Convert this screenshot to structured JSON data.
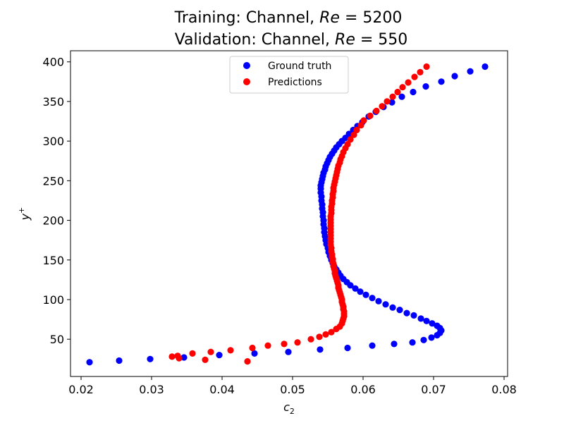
{
  "chart_data": {
    "type": "scatter",
    "title_line1": "Training: Channel, ",
    "title_line1_math": "Re",
    "title_line1_value": " = 5200",
    "title_line2": "Validation: Channel, ",
    "title_line2_math": "Re",
    "title_line2_value": " = 550",
    "xlabel": "c",
    "xlabel_sub": "2",
    "ylabel": "y",
    "ylabel_sup": "+",
    "xlim": [
      0.0185,
      0.0805
    ],
    "ylim": [
      3,
      414
    ],
    "xticks": [
      0.02,
      0.03,
      0.04,
      0.05,
      0.06,
      0.07,
      0.08
    ],
    "xtick_labels": [
      "0.02",
      "0.03",
      "0.04",
      "0.05",
      "0.06",
      "0.07",
      "0.08"
    ],
    "yticks": [
      50,
      100,
      150,
      200,
      250,
      300,
      350,
      400
    ],
    "ytick_labels": [
      "50",
      "100",
      "150",
      "200",
      "250",
      "300",
      "350",
      "400"
    ],
    "legend_position": "upper-center",
    "grid": false,
    "series": [
      {
        "name": "Ground truth",
        "color": "#0000ff",
        "points": [
          [
            0.0212,
            21
          ],
          [
            0.0254,
            23
          ],
          [
            0.0298,
            25
          ],
          [
            0.0346,
            27
          ],
          [
            0.0396,
            30
          ],
          [
            0.0446,
            32
          ],
          [
            0.0494,
            34
          ],
          [
            0.0539,
            37
          ],
          [
            0.0578,
            39
          ],
          [
            0.0613,
            42
          ],
          [
            0.0644,
            44
          ],
          [
            0.067,
            46
          ],
          [
            0.0686,
            49
          ],
          [
            0.0697,
            52
          ],
          [
            0.0705,
            55
          ],
          [
            0.0709,
            58
          ],
          [
            0.0711,
            61
          ],
          [
            0.0709,
            64
          ],
          [
            0.0705,
            67
          ],
          [
            0.0698,
            70
          ],
          [
            0.069,
            73
          ],
          [
            0.0682,
            76
          ],
          [
            0.0672,
            80
          ],
          [
            0.0662,
            83
          ],
          [
            0.0652,
            87
          ],
          [
            0.0642,
            90
          ],
          [
            0.0632,
            94
          ],
          [
            0.0622,
            98
          ],
          [
            0.0613,
            102
          ],
          [
            0.0604,
            106
          ],
          [
            0.0596,
            110
          ],
          [
            0.0589,
            114
          ],
          [
            0.0582,
            118
          ],
          [
            0.0577,
            122
          ],
          [
            0.0572,
            126
          ],
          [
            0.0568,
            130
          ],
          [
            0.0565,
            134
          ],
          [
            0.0562,
            138
          ],
          [
            0.0559,
            142
          ],
          [
            0.0557,
            146
          ],
          [
            0.0555,
            150
          ],
          [
            0.0553,
            155
          ],
          [
            0.0551,
            160
          ],
          [
            0.055,
            165
          ],
          [
            0.0548,
            170
          ],
          [
            0.0547,
            175
          ],
          [
            0.0546,
            180
          ],
          [
            0.0545,
            185
          ],
          [
            0.0545,
            190
          ],
          [
            0.0544,
            195
          ],
          [
            0.0544,
            200
          ],
          [
            0.0543,
            205
          ],
          [
            0.0543,
            210
          ],
          [
            0.0542,
            215
          ],
          [
            0.0542,
            220
          ],
          [
            0.0541,
            225
          ],
          [
            0.0541,
            230
          ],
          [
            0.054,
            235
          ],
          [
            0.054,
            240
          ],
          [
            0.054,
            244
          ],
          [
            0.0541,
            248
          ],
          [
            0.0542,
            252
          ],
          [
            0.0543,
            256
          ],
          [
            0.0544,
            260
          ],
          [
            0.0546,
            264
          ],
          [
            0.0547,
            268
          ],
          [
            0.0549,
            272
          ],
          [
            0.0551,
            276
          ],
          [
            0.0553,
            280
          ],
          [
            0.0556,
            284
          ],
          [
            0.0559,
            288
          ],
          [
            0.0562,
            292
          ],
          [
            0.0566,
            296
          ],
          [
            0.057,
            300
          ],
          [
            0.0575,
            304
          ],
          [
            0.058,
            309
          ],
          [
            0.0586,
            314
          ],
          [
            0.0592,
            319
          ],
          [
            0.0599,
            324
          ],
          [
            0.0608,
            331
          ],
          [
            0.0618,
            337
          ],
          [
            0.0629,
            343
          ],
          [
            0.0641,
            349
          ],
          [
            0.0655,
            356
          ],
          [
            0.0671,
            362
          ],
          [
            0.0689,
            369
          ],
          [
            0.0711,
            375
          ],
          [
            0.073,
            382
          ],
          [
            0.0752,
            388
          ],
          [
            0.0773,
            394
          ]
        ]
      },
      {
        "name": "Predictions",
        "color": "#ff0000",
        "points": [
          [
            0.0436,
            22
          ],
          [
            0.0376,
            24
          ],
          [
            0.0339,
            26
          ],
          [
            0.0337,
            29
          ],
          [
            0.0329,
            28
          ],
          [
            0.0358,
            32
          ],
          [
            0.0384,
            34
          ],
          [
            0.0412,
            36
          ],
          [
            0.0443,
            39
          ],
          [
            0.0465,
            42
          ],
          [
            0.0488,
            44
          ],
          [
            0.0507,
            46
          ],
          [
            0.0526,
            50
          ],
          [
            0.0538,
            53
          ],
          [
            0.0547,
            56
          ],
          [
            0.0555,
            59
          ],
          [
            0.0562,
            63
          ],
          [
            0.0567,
            66
          ],
          [
            0.057,
            70
          ],
          [
            0.0571,
            73
          ],
          [
            0.0572,
            76
          ],
          [
            0.0573,
            79
          ],
          [
            0.0573,
            82
          ],
          [
            0.0573,
            85
          ],
          [
            0.0572,
            88
          ],
          [
            0.0572,
            91
          ],
          [
            0.0571,
            94
          ],
          [
            0.057,
            97
          ],
          [
            0.057,
            100
          ],
          [
            0.0569,
            103
          ],
          [
            0.0568,
            106
          ],
          [
            0.0567,
            109
          ],
          [
            0.0566,
            112
          ],
          [
            0.0565,
            115
          ],
          [
            0.0565,
            118
          ],
          [
            0.0564,
            121
          ],
          [
            0.0563,
            124
          ],
          [
            0.0562,
            127
          ],
          [
            0.0561,
            130
          ],
          [
            0.056,
            133
          ],
          [
            0.056,
            136
          ],
          [
            0.0559,
            139
          ],
          [
            0.0558,
            142
          ],
          [
            0.0558,
            145
          ],
          [
            0.0557,
            148
          ],
          [
            0.0557,
            151
          ],
          [
            0.0556,
            154
          ],
          [
            0.0556,
            157
          ],
          [
            0.0555,
            161
          ],
          [
            0.0555,
            165
          ],
          [
            0.0554,
            169
          ],
          [
            0.0554,
            173
          ],
          [
            0.0554,
            177
          ],
          [
            0.0554,
            181
          ],
          [
            0.0554,
            185
          ],
          [
            0.0554,
            189
          ],
          [
            0.0554,
            193
          ],
          [
            0.0554,
            197
          ],
          [
            0.0554,
            201
          ],
          [
            0.0554,
            205
          ],
          [
            0.0555,
            209
          ],
          [
            0.0555,
            213
          ],
          [
            0.0555,
            217
          ],
          [
            0.0556,
            221
          ],
          [
            0.0556,
            225
          ],
          [
            0.0557,
            229
          ],
          [
            0.0557,
            233
          ],
          [
            0.0558,
            237
          ],
          [
            0.0558,
            241
          ],
          [
            0.0559,
            245
          ],
          [
            0.056,
            249
          ],
          [
            0.0561,
            253
          ],
          [
            0.0562,
            257
          ],
          [
            0.0563,
            261
          ],
          [
            0.0564,
            265
          ],
          [
            0.0565,
            269
          ],
          [
            0.0567,
            273
          ],
          [
            0.0568,
            277
          ],
          [
            0.057,
            281
          ],
          [
            0.0572,
            286
          ],
          [
            0.0575,
            291
          ],
          [
            0.0578,
            296
          ],
          [
            0.0582,
            302
          ],
          [
            0.0587,
            308
          ],
          [
            0.0591,
            314
          ],
          [
            0.0597,
            320
          ],
          [
            0.0601,
            326
          ],
          [
            0.061,
            332
          ],
          [
            0.0619,
            338
          ],
          [
            0.0627,
            344
          ],
          [
            0.0634,
            350
          ],
          [
            0.0642,
            356
          ],
          [
            0.0649,
            362
          ],
          [
            0.0656,
            368
          ],
          [
            0.0664,
            374
          ],
          [
            0.0673,
            381
          ],
          [
            0.0681,
            387
          ],
          [
            0.069,
            394
          ]
        ]
      }
    ]
  }
}
